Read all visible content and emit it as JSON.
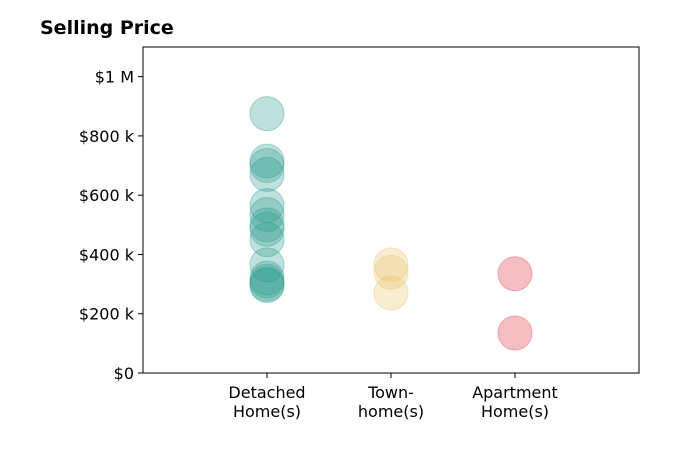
{
  "chart_data": {
    "type": "scatter",
    "title": "Selling Price",
    "xlabel": "",
    "ylabel": "",
    "ylim": [
      0,
      1100000
    ],
    "grid": false,
    "yticks": [
      {
        "value": 0,
        "label": "$0"
      },
      {
        "value": 200000,
        "label": "$200 k"
      },
      {
        "value": 400000,
        "label": "$400 k"
      },
      {
        "value": 600000,
        "label": "$600 k"
      },
      {
        "value": 800000,
        "label": "$800 k"
      },
      {
        "value": 1000000,
        "label": "$1 M"
      }
    ],
    "categories": [
      {
        "lines": [
          "Detached",
          "Home(s)"
        ]
      },
      {
        "lines": [
          "Town-",
          "home(s)"
        ]
      },
      {
        "lines": [
          "Apartment",
          "Home(s)"
        ]
      }
    ],
    "series": [
      {
        "category": 0,
        "color": "#2a9d8f",
        "opacity": 0.3,
        "values": [
          875000,
          715000,
          700000,
          670000,
          565000,
          535000,
          500000,
          485000,
          450000,
          365000,
          320000,
          310000,
          300000,
          295000
        ]
      },
      {
        "category": 1,
        "color": "#e9c46a",
        "opacity": 0.3,
        "values": [
          365000,
          340000,
          270000
        ]
      },
      {
        "category": 2,
        "color": "#e76f7a",
        "opacity": 0.45,
        "values": [
          335000,
          135000
        ]
      }
    ]
  }
}
